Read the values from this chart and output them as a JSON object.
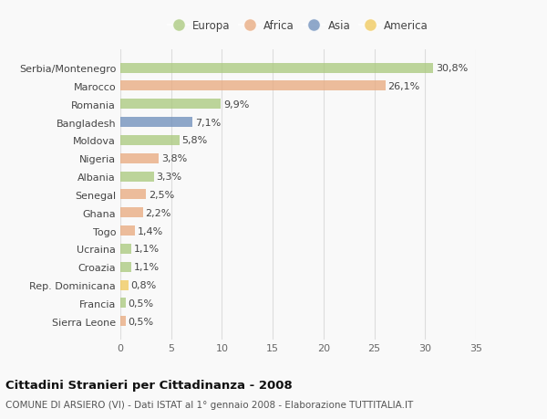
{
  "countries": [
    "Serbia/Montenegro",
    "Marocco",
    "Romania",
    "Bangladesh",
    "Moldova",
    "Nigeria",
    "Albania",
    "Senegal",
    "Ghana",
    "Togo",
    "Ucraina",
    "Croazia",
    "Rep. Dominicana",
    "Francia",
    "Sierra Leone"
  ],
  "values": [
    30.8,
    26.1,
    9.9,
    7.1,
    5.8,
    3.8,
    3.3,
    2.5,
    2.2,
    1.4,
    1.1,
    1.1,
    0.8,
    0.5,
    0.5
  ],
  "labels": [
    "30,8%",
    "26,1%",
    "9,9%",
    "7,1%",
    "5,8%",
    "3,8%",
    "3,3%",
    "2,5%",
    "2,2%",
    "1,4%",
    "1,1%",
    "1,1%",
    "0,8%",
    "0,5%",
    "0,5%"
  ],
  "continents": [
    "Europa",
    "Africa",
    "Europa",
    "Asia",
    "Europa",
    "Africa",
    "Europa",
    "Africa",
    "Africa",
    "Africa",
    "Europa",
    "Europa",
    "America",
    "Europa",
    "Africa"
  ],
  "continent_colors": {
    "Europa": "#a8c87a",
    "Africa": "#e8a87c",
    "Asia": "#6b8cba",
    "America": "#f0c857"
  },
  "legend_order": [
    "Europa",
    "Africa",
    "Asia",
    "America"
  ],
  "title": "Cittadini Stranieri per Cittadinanza - 2008",
  "subtitle": "COMUNE DI ARSIERO (VI) - Dati ISTAT al 1° gennaio 2008 - Elaborazione TUTTITALIA.IT",
  "xlim": [
    0,
    35
  ],
  "xticks": [
    0,
    5,
    10,
    15,
    20,
    25,
    30,
    35
  ],
  "background_color": "#f9f9f9",
  "grid_color": "#dddddd",
  "bar_height": 0.55,
  "label_fontsize": 8,
  "tick_fontsize": 8,
  "title_fontsize": 9.5,
  "subtitle_fontsize": 7.5,
  "bar_alpha": 0.75
}
